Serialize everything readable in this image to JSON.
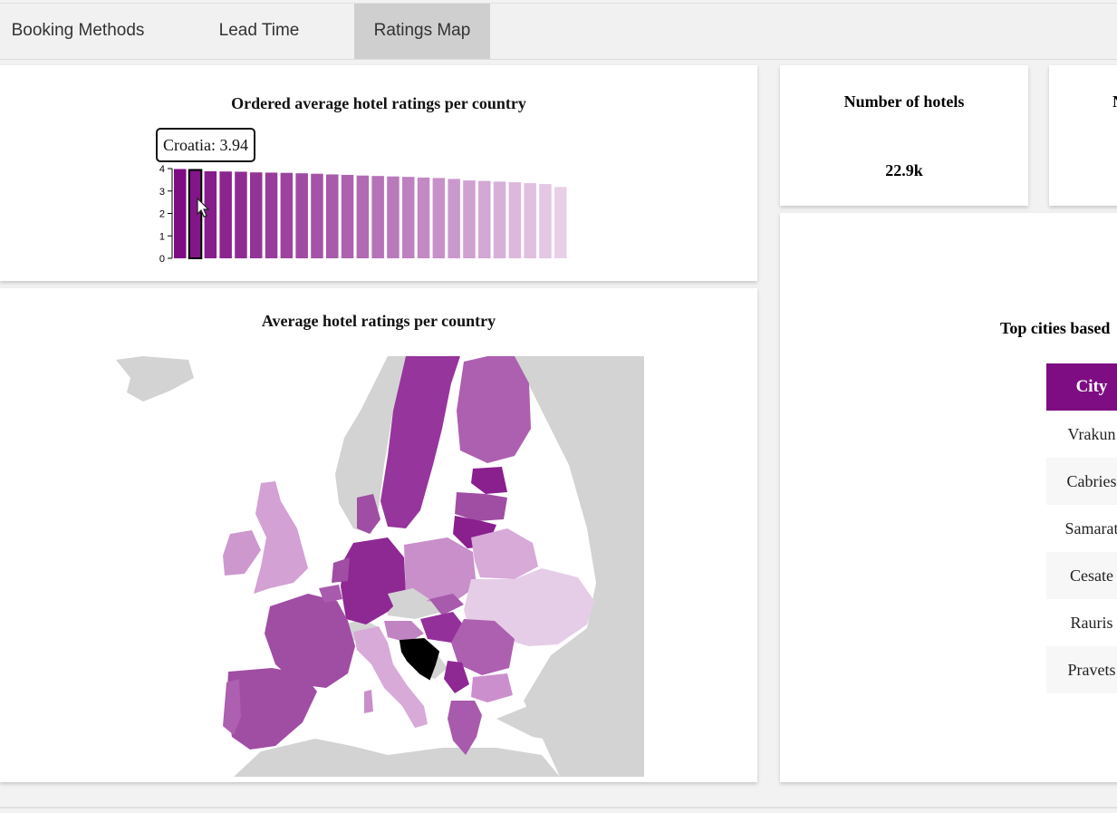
{
  "tabs": [
    {
      "label": "Booking Methods",
      "active": false
    },
    {
      "label": "Lead Time",
      "active": false
    },
    {
      "label": "Ratings Map",
      "active": true
    }
  ],
  "bar_chart": {
    "title": "Ordered average hotel ratings per country",
    "tooltip": "Croatia: 3.94",
    "y_ticks": [
      "0",
      "1",
      "2",
      "3",
      "4"
    ]
  },
  "map": {
    "title": "Average hotel ratings per country",
    "highlighted_country": "Croatia"
  },
  "stats": {
    "hotels_title": "Number of hotels",
    "hotels_value": "22.9k",
    "second_title_partial": "N"
  },
  "cities_table": {
    "title": "Top cities based",
    "header": "City",
    "rows": [
      "Vrakun",
      "Cabries",
      "Samarat",
      "Cesate",
      "Rauris",
      "Pravets"
    ]
  },
  "colors": {
    "accent": "#7e0d83",
    "tab_active": "#cfcfcf",
    "no_data": "#d3d3d3"
  },
  "chart_data": {
    "type": "bar",
    "title": "Ordered average hotel ratings per country",
    "ylim": [
      0,
      4
    ],
    "values": [
      3.98,
      3.94,
      3.88,
      3.87,
      3.86,
      3.83,
      3.82,
      3.81,
      3.79,
      3.77,
      3.74,
      3.72,
      3.69,
      3.67,
      3.65,
      3.63,
      3.6,
      3.58,
      3.54,
      3.47,
      3.45,
      3.42,
      3.39,
      3.35,
      3.31,
      3.18
    ],
    "highlight_index": 1
  }
}
